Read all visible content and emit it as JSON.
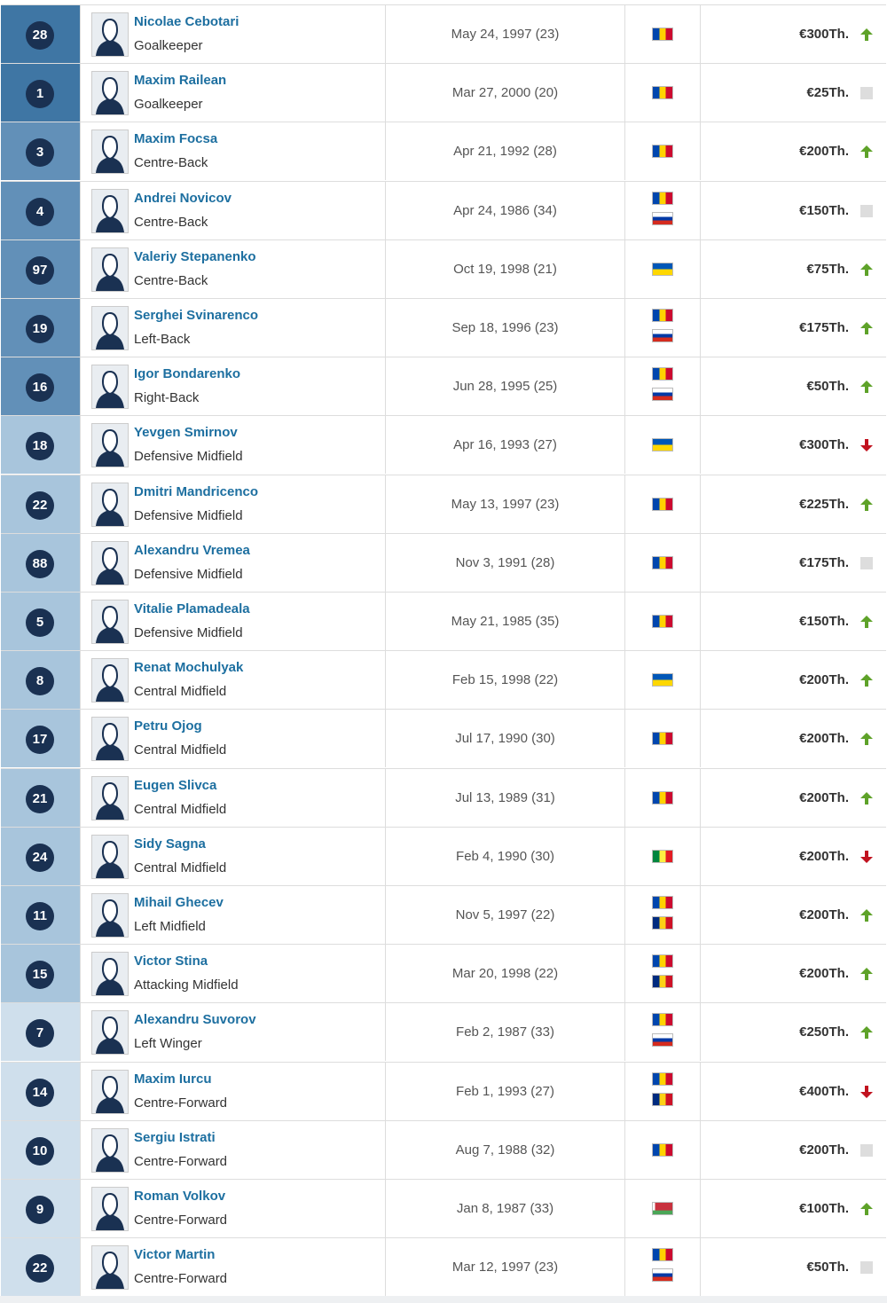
{
  "table": {
    "rows": [
      {
        "number": "28",
        "name": "Nicolae Cebotari",
        "position": "Goalkeeper",
        "dob": "May 24, 1997 (23)",
        "value": "€300Th.",
        "flags": [
          "md"
        ],
        "trend": "up",
        "shade": "#3f76a4"
      },
      {
        "number": "1",
        "name": "Maxim Railean",
        "position": "Goalkeeper",
        "dob": "Mar 27, 2000 (20)",
        "value": "€25Th.",
        "flags": [
          "md"
        ],
        "trend": "none",
        "shade": "#3f76a4"
      },
      {
        "number": "3",
        "name": "Maxim Focsa",
        "position": "Centre-Back",
        "dob": "Apr 21, 1992 (28)",
        "value": "€200Th.",
        "flags": [
          "md"
        ],
        "trend": "up",
        "shade": "#6290b8"
      },
      {
        "number": "4",
        "name": "Andrei Novicov",
        "position": "Centre-Back",
        "dob": "Apr 24, 1986 (34)",
        "value": "€150Th.",
        "flags": [
          "md",
          "ru"
        ],
        "trend": "none",
        "shade": "#6290b8"
      },
      {
        "number": "97",
        "name": "Valeriy Stepanenko",
        "position": "Centre-Back",
        "dob": "Oct 19, 1998 (21)",
        "value": "€75Th.",
        "flags": [
          "ua"
        ],
        "trend": "up",
        "shade": "#6290b8"
      },
      {
        "number": "19",
        "name": "Serghei Svinarenco",
        "position": "Left-Back",
        "dob": "Sep 18, 1996 (23)",
        "value": "€175Th.",
        "flags": [
          "md",
          "ru"
        ],
        "trend": "up",
        "shade": "#6290b8"
      },
      {
        "number": "16",
        "name": "Igor Bondarenko",
        "position": "Right-Back",
        "dob": "Jun 28, 1995 (25)",
        "value": "€50Th.",
        "flags": [
          "md",
          "ru"
        ],
        "trend": "up",
        "shade": "#6290b8"
      },
      {
        "number": "18",
        "name": "Yevgen Smirnov",
        "position": "Defensive Midfield",
        "dob": "Apr 16, 1993 (27)",
        "value": "€300Th.",
        "flags": [
          "ua"
        ],
        "trend": "down",
        "shade": "#a8c5dc"
      },
      {
        "number": "22",
        "name": "Dmitri Mandricenco",
        "position": "Defensive Midfield",
        "dob": "May 13, 1997 (23)",
        "value": "€225Th.",
        "flags": [
          "md"
        ],
        "trend": "up",
        "shade": "#a8c5dc"
      },
      {
        "number": "88",
        "name": "Alexandru Vremea",
        "position": "Defensive Midfield",
        "dob": "Nov 3, 1991 (28)",
        "value": "€175Th.",
        "flags": [
          "md"
        ],
        "trend": "none",
        "shade": "#a8c5dc"
      },
      {
        "number": "5",
        "name": "Vitalie Plamadeala",
        "position": "Defensive Midfield",
        "dob": "May 21, 1985 (35)",
        "value": "€150Th.",
        "flags": [
          "md"
        ],
        "trend": "up",
        "shade": "#a8c5dc"
      },
      {
        "number": "8",
        "name": "Renat Mochulyak",
        "position": "Central Midfield",
        "dob": "Feb 15, 1998 (22)",
        "value": "€200Th.",
        "flags": [
          "ua"
        ],
        "trend": "up",
        "shade": "#a8c5dc"
      },
      {
        "number": "17",
        "name": "Petru Ojog",
        "position": "Central Midfield",
        "dob": "Jul 17, 1990 (30)",
        "value": "€200Th.",
        "flags": [
          "md"
        ],
        "trend": "up",
        "shade": "#a8c5dc"
      },
      {
        "number": "21",
        "name": "Eugen Slivca",
        "position": "Central Midfield",
        "dob": "Jul 13, 1989 (31)",
        "value": "€200Th.",
        "flags": [
          "md"
        ],
        "trend": "up",
        "shade": "#a8c5dc"
      },
      {
        "number": "24",
        "name": "Sidy Sagna",
        "position": "Central Midfield",
        "dob": "Feb 4, 1990 (30)",
        "value": "€200Th.",
        "flags": [
          "sn"
        ],
        "trend": "down",
        "shade": "#a8c5dc"
      },
      {
        "number": "11",
        "name": "Mihail Ghecev",
        "position": "Left Midfield",
        "dob": "Nov 5, 1997 (22)",
        "value": "€200Th.",
        "flags": [
          "md",
          "ro"
        ],
        "trend": "up",
        "shade": "#a8c5dc"
      },
      {
        "number": "15",
        "name": "Victor Stina",
        "position": "Attacking Midfield",
        "dob": "Mar 20, 1998 (22)",
        "value": "€200Th.",
        "flags": [
          "md",
          "ro"
        ],
        "trend": "up",
        "shade": "#a8c5dc"
      },
      {
        "number": "7",
        "name": "Alexandru Suvorov",
        "position": "Left Winger",
        "dob": "Feb 2, 1987 (33)",
        "value": "€250Th.",
        "flags": [
          "md",
          "ru"
        ],
        "trend": "up",
        "shade": "#cfdfec"
      },
      {
        "number": "14",
        "name": "Maxim Iurcu",
        "position": "Centre-Forward",
        "dob": "Feb 1, 1993 (27)",
        "value": "€400Th.",
        "flags": [
          "md",
          "ro"
        ],
        "trend": "down",
        "shade": "#cfdfec"
      },
      {
        "number": "10",
        "name": "Sergiu Istrati",
        "position": "Centre-Forward",
        "dob": "Aug 7, 1988 (32)",
        "value": "€200Th.",
        "flags": [
          "md"
        ],
        "trend": "none",
        "shade": "#cfdfec"
      },
      {
        "number": "9",
        "name": "Roman Volkov",
        "position": "Centre-Forward",
        "dob": "Jan 8, 1987 (33)",
        "value": "€100Th.",
        "flags": [
          "by"
        ],
        "trend": "up",
        "shade": "#cfdfec"
      },
      {
        "number": "22",
        "name": "Victor Martin",
        "position": "Centre-Forward",
        "dob": "Mar 12, 1997 (23)",
        "value": "€50Th.",
        "flags": [
          "md",
          "ru"
        ],
        "trend": "none",
        "shade": "#cfdfec"
      }
    ]
  }
}
